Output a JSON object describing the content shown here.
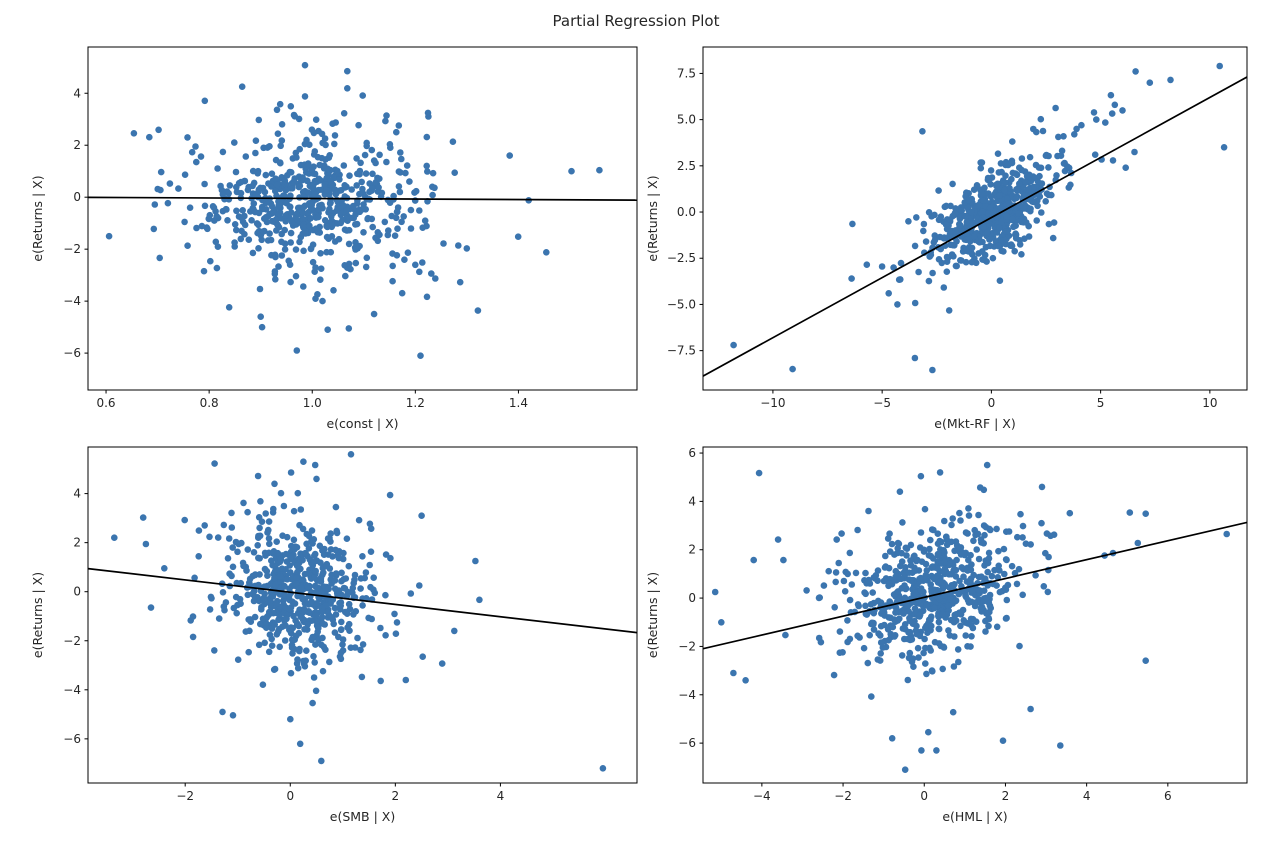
{
  "figure_title": "Partial Regression Plot",
  "colors": {
    "marker": "#3b75af",
    "regression_line": "#000000",
    "spine": "#000000",
    "text": "#262626",
    "background": "#ffffff"
  },
  "chart_data": [
    {
      "id": "const",
      "type": "scatter",
      "position": "top-left",
      "xlabel": "e(const | X)",
      "ylabel": "e(Returns | X)",
      "xlim": [
        0.565,
        1.63
      ],
      "ylim": [
        -7.42,
        5.78
      ],
      "xticks": {
        "values": [
          0.6,
          0.8,
          1.0,
          1.2,
          1.4
        ],
        "labels": [
          "0.6",
          "0.8",
          "1.0",
          "1.2",
          "1.4"
        ]
      },
      "yticks": {
        "values": [
          4,
          2,
          0,
          -2,
          -4,
          -6
        ],
        "labels": [
          "4",
          "2",
          "0",
          "−2",
          "−4",
          "−6"
        ]
      },
      "regression_line": {
        "slope": -0.1,
        "intercept": 0.05
      },
      "cloud": {
        "n": 620,
        "x_center": 1.0,
        "y_center": -0.1,
        "x_std": 0.1,
        "x_std_wide": 0.17,
        "wide_frac": 0.2,
        "slope": 0,
        "y_std": 1.15,
        "y_std_wide": 2.2
      },
      "outliers": [
        [
          0.606,
          -1.5
        ],
        [
          0.654,
          2.46
        ],
        [
          0.684,
          2.31
        ],
        [
          0.72,
          -0.23
        ],
        [
          0.758,
          2.3
        ],
        [
          0.775,
          1.35
        ],
        [
          0.79,
          -2.85
        ],
        [
          0.81,
          -0.9
        ],
        [
          0.917,
          1.96
        ],
        [
          0.986,
          5.08
        ],
        [
          1.068,
          4.85
        ],
        [
          1.068,
          4.19
        ],
        [
          0.986,
          3.88
        ],
        [
          1.062,
          3.23
        ],
        [
          1.09,
          2.77
        ],
        [
          1.163,
          2.5
        ],
        [
          0.9,
          -4.6
        ],
        [
          0.97,
          -5.9
        ],
        [
          1.03,
          -5.1
        ],
        [
          1.21,
          -6.1
        ],
        [
          1.12,
          -4.5
        ],
        [
          1.02,
          -4.0
        ],
        [
          1.454,
          -2.12
        ],
        [
          1.42,
          -0.12
        ],
        [
          1.503,
          1.0
        ],
        [
          1.557,
          1.04
        ],
        [
          1.383,
          1.6
        ],
        [
          1.287,
          -3.27
        ]
      ]
    },
    {
      "id": "mkt-rf",
      "type": "scatter",
      "position": "top-right",
      "xlabel": "e(Mkt-RF | X)",
      "ylabel": "e(Returns | X)",
      "xlim": [
        -13.2,
        11.7
      ],
      "ylim": [
        -9.63,
        8.93
      ],
      "xticks": {
        "values": [
          -10,
          -5,
          0,
          5,
          10
        ],
        "labels": [
          "−10",
          "−5",
          "0",
          "5",
          "10"
        ]
      },
      "yticks": {
        "values": [
          7.5,
          5.0,
          2.5,
          0.0,
          -2.5,
          -5.0,
          -7.5
        ],
        "labels": [
          "7.5",
          "5.0",
          "2.5",
          "0.0",
          "−2.5",
          "−5.0",
          "−7.5"
        ]
      },
      "regression_line": {
        "slope": 0.65,
        "intercept": -0.3
      },
      "cloud": {
        "n": 600,
        "x_center": 0.1,
        "y_center": 0.0,
        "x_std": 1.25,
        "x_std_wide": 2.6,
        "wide_frac": 0.18,
        "slope": 0.62,
        "y_std": 1.1,
        "y_std_wide": 1.9
      },
      "outliers": [
        [
          -11.8,
          -7.2
        ],
        [
          -9.1,
          -8.5
        ],
        [
          -3.5,
          -7.9
        ],
        [
          -2.7,
          -8.55
        ],
        [
          -6.4,
          -3.6
        ],
        [
          -4.7,
          -4.4
        ],
        [
          -4.3,
          -5.0
        ],
        [
          -5.0,
          -2.95
        ],
        [
          10.45,
          7.9
        ],
        [
          10.65,
          3.5
        ],
        [
          8.2,
          7.15
        ],
        [
          7.25,
          7.0
        ],
        [
          5.65,
          5.8
        ],
        [
          6.0,
          5.5
        ],
        [
          4.8,
          5.0
        ],
        [
          4.75,
          3.1
        ],
        [
          6.55,
          3.25
        ],
        [
          6.15,
          2.4
        ],
        [
          3.9,
          4.5
        ],
        [
          3.3,
          4.1
        ],
        [
          -3.8,
          -0.5
        ]
      ]
    },
    {
      "id": "smb",
      "type": "scatter",
      "position": "bottom-left",
      "xlabel": "e(SMB | X)",
      "ylabel": "e(Returns | X)",
      "xlim": [
        -3.85,
        6.6
      ],
      "ylim": [
        -7.8,
        5.9
      ],
      "xticks": {
        "values": [
          -2,
          0,
          2,
          4
        ],
        "labels": [
          "−2",
          "0",
          "2",
          "4"
        ]
      },
      "yticks": {
        "values": [
          4,
          2,
          0,
          -2,
          -4,
          -6
        ],
        "labels": [
          "4",
          "2",
          "0",
          "−2",
          "−4",
          "−6"
        ]
      },
      "regression_line": {
        "slope": -0.25,
        "intercept": -0.02
      },
      "cloud": {
        "n": 620,
        "x_center": 0.15,
        "y_center": 0.0,
        "x_std": 0.62,
        "x_std_wide": 1.15,
        "wide_frac": 0.2,
        "slope": -0.25,
        "y_std": 1.3,
        "y_std_wide": 2.1
      },
      "outliers": [
        [
          -3.35,
          2.2
        ],
        [
          -2.8,
          3.02
        ],
        [
          -2.65,
          -0.65
        ],
        [
          -1.74,
          2.49
        ],
        [
          -0.89,
          3.62
        ],
        [
          -1.29,
          -4.9
        ],
        [
          0.25,
          5.3
        ],
        [
          0.5,
          4.6
        ],
        [
          -0.3,
          4.4
        ],
        [
          1.9,
          3.94
        ],
        [
          2.5,
          3.1
        ],
        [
          2.52,
          -2.65
        ],
        [
          3.6,
          -0.33
        ],
        [
          2.2,
          -3.6
        ],
        [
          0.19,
          -6.2
        ],
        [
          0.59,
          -6.9
        ],
        [
          0.0,
          -5.2
        ],
        [
          5.95,
          -7.2
        ]
      ]
    },
    {
      "id": "hml",
      "type": "scatter",
      "position": "bottom-right",
      "xlabel": "e(HML | X)",
      "ylabel": "e(Returns | X)",
      "xlim": [
        -5.45,
        7.95
      ],
      "ylim": [
        -7.65,
        6.25
      ],
      "xticks": {
        "values": [
          -4,
          -2,
          0,
          2,
          4,
          6
        ],
        "labels": [
          "−4",
          "−2",
          "0",
          "2",
          "4",
          "6"
        ]
      },
      "yticks": {
        "values": [
          6,
          4,
          2,
          0,
          -2,
          -4,
          -6
        ],
        "labels": [
          "6",
          "4",
          "2",
          "0",
          "−2",
          "−4",
          "−6"
        ]
      },
      "regression_line": {
        "slope": 0.39,
        "intercept": 0.03
      },
      "cloud": {
        "n": 640,
        "x_center": 0.15,
        "y_center": 0.2,
        "x_std": 0.95,
        "x_std_wide": 1.8,
        "wide_frac": 0.2,
        "slope": 0.39,
        "y_std": 1.25,
        "y_std_wide": 2.0
      },
      "outliers": [
        [
          -4.4,
          -3.4
        ],
        [
          -4.7,
          -3.1
        ],
        [
          -4.2,
          1.57
        ],
        [
          -3.47,
          1.57
        ],
        [
          -3.42,
          -1.53
        ],
        [
          -5.15,
          0.25
        ],
        [
          -5.0,
          -1.0
        ],
        [
          1.55,
          5.5
        ],
        [
          0.39,
          5.2
        ],
        [
          -0.6,
          4.4
        ],
        [
          2.9,
          4.6
        ],
        [
          7.45,
          2.65
        ],
        [
          5.26,
          2.28
        ],
        [
          4.65,
          1.86
        ],
        [
          -0.47,
          -7.1
        ],
        [
          -0.07,
          -6.3
        ],
        [
          0.3,
          -6.3
        ],
        [
          1.94,
          -5.9
        ],
        [
          -0.79,
          -5.8
        ],
        [
          0.1,
          -5.55
        ],
        [
          3.35,
          -6.1
        ]
      ]
    }
  ]
}
